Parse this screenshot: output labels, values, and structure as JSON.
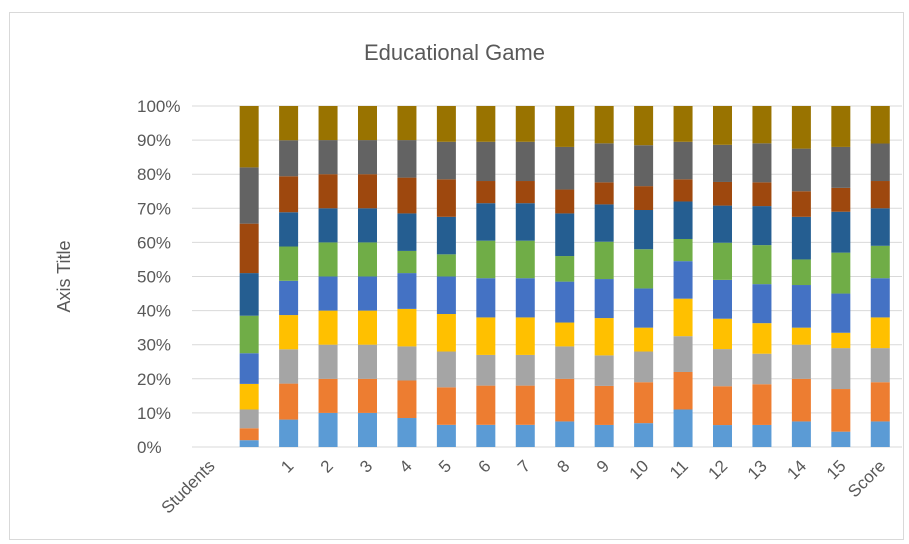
{
  "chart_data": {
    "type": "bar",
    "stacked": "percent",
    "title": "Educational Game",
    "ylabel": "Axis Title",
    "xlabel": "",
    "ylim": [
      0,
      100
    ],
    "yticks": [
      "0%",
      "10%",
      "20%",
      "30%",
      "40%",
      "50%",
      "60%",
      "70%",
      "80%",
      "90%",
      "100%"
    ],
    "categories": [
      "Students",
      "",
      "1",
      "2",
      "3",
      "4",
      "5",
      "6",
      "7",
      "8",
      "9",
      "10",
      "11",
      "12",
      "13",
      "14",
      "15",
      "Score"
    ],
    "grid": true,
    "series": [
      {
        "color": "#5b9bd5",
        "values": [
          0,
          2,
          8,
          10,
          10,
          8.5,
          6.5,
          6.5,
          6.5,
          7.5,
          6.5,
          7,
          11,
          6.5,
          6.5,
          7.5,
          4.5,
          7.5
        ]
      },
      {
        "color": "#ed7d31",
        "values": [
          0,
          3.5,
          10.5,
          10,
          10,
          11,
          11,
          11.5,
          11.5,
          12.5,
          11.5,
          12,
          11,
          11.5,
          12,
          12.5,
          12.5,
          11.5
        ]
      },
      {
        "color": "#a5a5a5",
        "values": [
          0,
          5.5,
          10,
          10,
          10,
          10,
          10.5,
          9,
          9,
          9.5,
          9,
          9,
          10.5,
          11,
          9,
          10,
          12,
          10
        ]
      },
      {
        "color": "#ffc000",
        "values": [
          0,
          7.5,
          10,
          10,
          10,
          11,
          11,
          11,
          11,
          7,
          11,
          7,
          11,
          9,
          9,
          5,
          4.5,
          9
        ]
      },
      {
        "color": "#4472c4",
        "values": [
          0,
          9,
          10,
          10,
          10,
          10.5,
          11,
          11.5,
          11.5,
          12,
          11.5,
          11.5,
          11,
          11.5,
          11.5,
          12.5,
          11.5,
          11.5
        ]
      },
      {
        "color": "#70ad47",
        "values": [
          0,
          11,
          10,
          10,
          10,
          6.5,
          6.5,
          11,
          11,
          7.5,
          11,
          11.5,
          6.5,
          11,
          11.5,
          7.5,
          12,
          9.5
        ]
      },
      {
        "color": "#255e91",
        "values": [
          0,
          12.5,
          10,
          10,
          10,
          11,
          11,
          11,
          11,
          12.5,
          11,
          11.5,
          11,
          11,
          11.5,
          12.5,
          12,
          11
        ]
      },
      {
        "color": "#9e480e",
        "values": [
          0,
          14.5,
          10.5,
          10,
          10,
          10.5,
          11,
          6.5,
          6.5,
          7,
          6.5,
          7,
          6.5,
          7,
          7,
          7.5,
          7,
          8
        ]
      },
      {
        "color": "#636363",
        "values": [
          0,
          16.5,
          10.5,
          10,
          10,
          11,
          11,
          11.5,
          11.5,
          12.5,
          11.5,
          12,
          11,
          11,
          11.5,
          12.5,
          12,
          11
        ]
      },
      {
        "color": "#997300",
        "values": [
          0,
          18,
          10,
          10,
          10,
          10,
          10.5,
          10.5,
          10.5,
          12,
          11,
          11.5,
          10.5,
          11.5,
          11,
          12.5,
          12,
          11
        ]
      }
    ]
  }
}
